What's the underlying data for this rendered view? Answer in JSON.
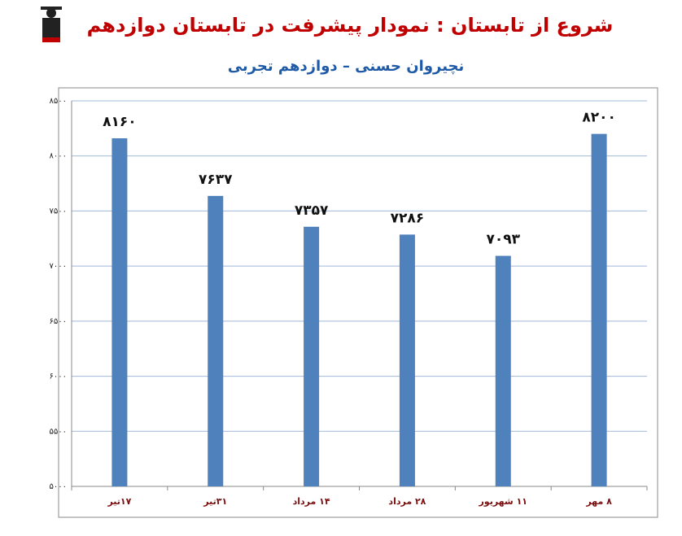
{
  "chart_data": {
    "type": "bar",
    "title": "شروع از تابستان : نمودار پیشرفت در تابستان دوازدهم",
    "subtitle": "نچیروان حسنی – دوازدهم تجربی",
    "categories": [
      "۱۷تیر",
      "۳۱تیر",
      "۱۴ مرداد",
      "۲۸ مرداد",
      "۱۱ شهریور",
      "۸ مهر"
    ],
    "values": [
      8160,
      7637,
      7357,
      7286,
      7093,
      8200
    ],
    "value_labels": [
      "۸۱۶۰",
      "۷۶۳۷",
      "۷۳۵۷",
      "۷۲۸۶",
      "۷۰۹۳",
      "۸۲۰۰"
    ],
    "color": "#4f81bd",
    "ylim": [
      5000,
      8500
    ],
    "yticks": [
      {
        "value": 5000,
        "label": "۵۰۰۰"
      },
      {
        "value": 5500,
        "label": "۵۵۰۰"
      },
      {
        "value": 6000,
        "label": "۶۰۰۰"
      },
      {
        "value": 6500,
        "label": "۶۵۰۰"
      },
      {
        "value": 7000,
        "label": "۷۰۰۰"
      },
      {
        "value": 7500,
        "label": "۷۵۰۰"
      },
      {
        "value": 8000,
        "label": "۸۰۰۰"
      },
      {
        "value": 8500,
        "label": "۸۵۰۰"
      }
    ],
    "grid": true
  }
}
